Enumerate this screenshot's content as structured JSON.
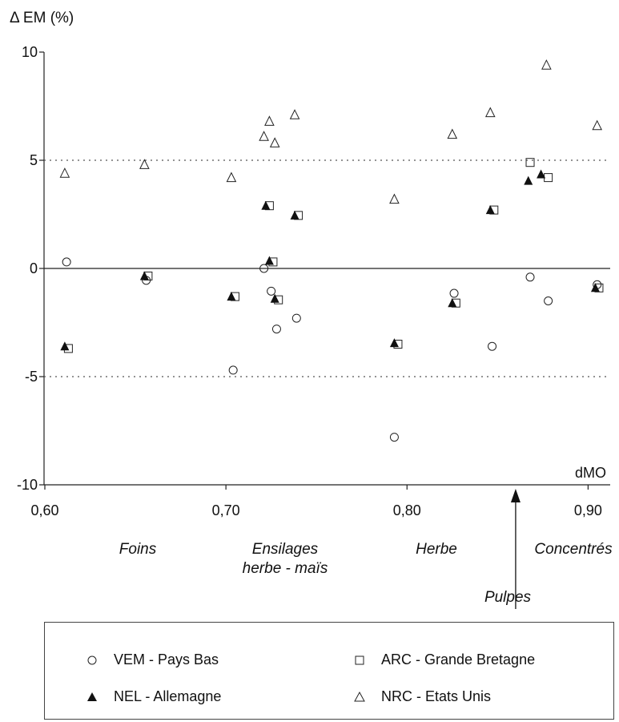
{
  "chart_data": {
    "type": "scatter",
    "ylabel": "Δ EM (%)",
    "xlabel": "dMO",
    "xlim": [
      0.6,
      0.91
    ],
    "ylim": [
      -10,
      10
    ],
    "x_ticks": [
      "0,60",
      "0,70",
      "0,80",
      "0,90"
    ],
    "y_ticks": [
      "10",
      "5",
      "0",
      "-5",
      "-10"
    ],
    "reference_lines": [
      5,
      -5
    ],
    "grid": false,
    "legend_placement": "bottom",
    "series": [
      {
        "name": "VEM - Pays Bas",
        "marker": "open-circle",
        "points": [
          [
            0.612,
            0.3
          ],
          [
            0.656,
            -0.55
          ],
          [
            0.704,
            -4.7
          ],
          [
            0.721,
            0.0
          ],
          [
            0.725,
            -1.05
          ],
          [
            0.728,
            -2.8
          ],
          [
            0.739,
            -2.3
          ],
          [
            0.793,
            -7.8
          ],
          [
            0.826,
            -1.15
          ],
          [
            0.847,
            -3.6
          ],
          [
            0.868,
            -0.4
          ],
          [
            0.878,
            -1.5
          ],
          [
            0.905,
            -0.75
          ]
        ]
      },
      {
        "name": "ARC - Grande Bretagne",
        "marker": "open-square",
        "points": [
          [
            0.613,
            -3.7
          ],
          [
            0.657,
            -0.35
          ],
          [
            0.705,
            -1.3
          ],
          [
            0.724,
            2.9
          ],
          [
            0.726,
            0.3
          ],
          [
            0.729,
            -1.45
          ],
          [
            0.74,
            2.45
          ],
          [
            0.795,
            -3.5
          ],
          [
            0.827,
            -1.6
          ],
          [
            0.848,
            2.7
          ],
          [
            0.868,
            4.9
          ],
          [
            0.878,
            4.2
          ],
          [
            0.906,
            -0.9
          ]
        ]
      },
      {
        "name": "NEL - Allemagne",
        "marker": "filled-triangle",
        "points": [
          [
            0.611,
            -3.6
          ],
          [
            0.655,
            -0.35
          ],
          [
            0.703,
            -1.3
          ],
          [
            0.722,
            2.9
          ],
          [
            0.724,
            0.35
          ],
          [
            0.727,
            -1.4
          ],
          [
            0.738,
            2.45
          ],
          [
            0.793,
            -3.45
          ],
          [
            0.825,
            -1.6
          ],
          [
            0.846,
            2.7
          ],
          [
            0.867,
            4.05
          ],
          [
            0.874,
            4.35
          ],
          [
            0.904,
            -0.9
          ]
        ]
      },
      {
        "name": "NRC - Etats Unis",
        "marker": "open-triangle",
        "points": [
          [
            0.611,
            4.4
          ],
          [
            0.655,
            4.8
          ],
          [
            0.703,
            4.2
          ],
          [
            0.721,
            6.1
          ],
          [
            0.724,
            6.8
          ],
          [
            0.727,
            5.8
          ],
          [
            0.738,
            7.1
          ],
          [
            0.793,
            3.2
          ],
          [
            0.825,
            6.2
          ],
          [
            0.846,
            7.2
          ],
          [
            0.877,
            9.4
          ],
          [
            0.905,
            6.6
          ]
        ]
      }
    ],
    "categories": [
      {
        "label": "Foins"
      },
      {
        "label": "Ensilages",
        "label2": "herbe - maïs"
      },
      {
        "label": "Herbe"
      },
      {
        "label": "Pulpes"
      },
      {
        "label": "Concentrés"
      }
    ],
    "pulpes_arrow_x": 0.86
  }
}
